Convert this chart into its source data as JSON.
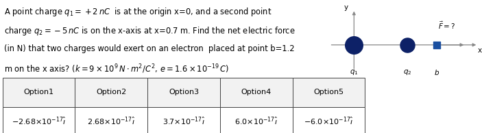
{
  "text_line1": "A point charge $q_1 = +2\\,nC$  is at the origin x=0, and a second point",
  "text_line2": "charge $q_2 = -5\\,nC$ is on the x-axis at x=0.7 m. Find the net electric force",
  "text_line3": "(in N) that two charges would exert on an electron  placed at point b=1.2",
  "text_line4": "m on the x axis? $(k = 9 \\times 10^9\\,N \\cdot m^2/C^2,\\, e = 1.6 \\times 10^{-19}\\,C)$",
  "options": [
    "Option1",
    "Option2",
    "Option3",
    "Option4",
    "Option5"
  ],
  "values": [
    "$-2.68{\\times}10^{-17}\\hat{\\imath}$",
    "$2.68{\\times}10^{-17}\\hat{\\imath}$",
    "$3.7{\\times}10^{-17}\\hat{\\imath}$",
    "$6.0{\\times}10^{-17}\\hat{\\imath}$",
    "$-6.0{\\times}10^{-17}\\hat{\\imath}$"
  ],
  "dot_color": "#0d2167",
  "point_b_color": "#1a4fa0",
  "axis_color": "#888888",
  "bg_color": "#ffffff",
  "text_fontsize": 8.3,
  "table_fontsize": 8.0,
  "fig_width": 7.03,
  "fig_height": 1.95,
  "fig_dpi": 100
}
